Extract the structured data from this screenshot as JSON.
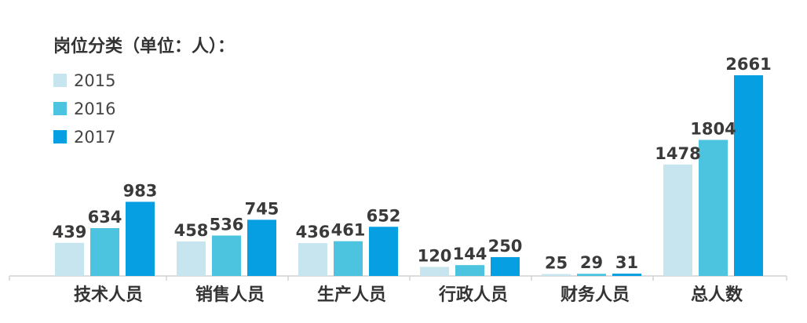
{
  "chart_data": {
    "type": "bar",
    "title": "岗位分类（单位：人）：",
    "categories": [
      "技术人员",
      "销售人员",
      "生产人员",
      "行政人员",
      "财务人员",
      "总人数"
    ],
    "series": [
      {
        "name": "2015",
        "color": "#c7e5ef",
        "values": [
          439,
          458,
          436,
          120,
          25,
          1478
        ]
      },
      {
        "name": "2016",
        "color": "#4cc3df",
        "values": [
          634,
          536,
          461,
          144,
          29,
          1804
        ]
      },
      {
        "name": "2017",
        "color": "#069fe2",
        "values": [
          983,
          745,
          652,
          250,
          31,
          2661
        ]
      }
    ],
    "legend_position": "top-left",
    "grid": false,
    "ylim": [
      0,
      2661
    ]
  }
}
